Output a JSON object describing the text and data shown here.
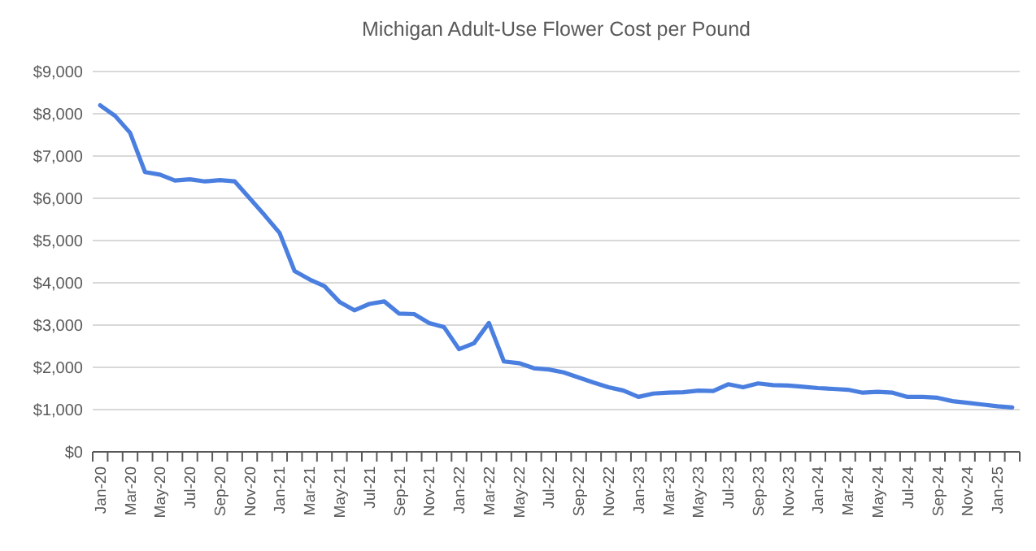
{
  "chart_data": {
    "type": "line",
    "title": "Michigan Adult-Use Flower Cost per Pound",
    "categories": [
      "Jan-20",
      null,
      "Mar-20",
      null,
      "May-20",
      null,
      "Jul-20",
      null,
      "Sep-20",
      null,
      "Nov-20",
      null,
      "Jan-21",
      null,
      "Mar-21",
      null,
      "May-21",
      null,
      "Jul-21",
      null,
      "Sep-21",
      null,
      "Nov-21",
      null,
      "Jan-22",
      null,
      "Mar-22",
      null,
      "May-22",
      null,
      "Jul-22",
      null,
      "Sep-22",
      null,
      "Nov-22",
      null,
      "Jan-23",
      null,
      "Mar-23",
      null,
      "May-23",
      null,
      "Jul-23",
      null,
      "Sep-23",
      null,
      "Nov-23",
      null,
      "Jan-24",
      null,
      "Mar-24",
      null,
      "May-24",
      null,
      "Jul-24",
      null,
      "Sep-24",
      null,
      "Nov-24",
      null,
      "Jan-25",
      null
    ],
    "series": [
      {
        "color": "#4a7fe0",
        "values": [
          8200,
          7950,
          7550,
          6620,
          6560,
          6420,
          6450,
          6400,
          6430,
          6400,
          6000,
          5600,
          5180,
          4280,
          4080,
          3920,
          3550,
          3350,
          3500,
          3560,
          3270,
          3260,
          3050,
          2950,
          2430,
          2570,
          3050,
          2140,
          2100,
          1980,
          1950,
          1880,
          1760,
          1640,
          1530,
          1450,
          1300,
          1380,
          1400,
          1410,
          1450,
          1440,
          1600,
          1530,
          1620,
          1580,
          1570,
          1540,
          1510,
          1490,
          1470,
          1400,
          1420,
          1400,
          1300,
          1300,
          1280,
          1200,
          1160,
          1120,
          1080,
          1050
        ]
      }
    ],
    "ylim": [
      0,
      9000
    ],
    "yticks": [
      {
        "value": 0,
        "label": "$0"
      },
      {
        "value": 1000,
        "label": "$1,000"
      },
      {
        "value": 2000,
        "label": "$2,000"
      },
      {
        "value": 3000,
        "label": "$3,000"
      },
      {
        "value": 4000,
        "label": "$4,000"
      },
      {
        "value": 5000,
        "label": "$5,000"
      },
      {
        "value": 6000,
        "label": "$6,000"
      },
      {
        "value": 7000,
        "label": "$7,000"
      },
      {
        "value": 8000,
        "label": "$8,000"
      },
      {
        "value": 9000,
        "label": "$9,000"
      }
    ],
    "grid": "y",
    "marker": "none",
    "line_style": "solid"
  }
}
